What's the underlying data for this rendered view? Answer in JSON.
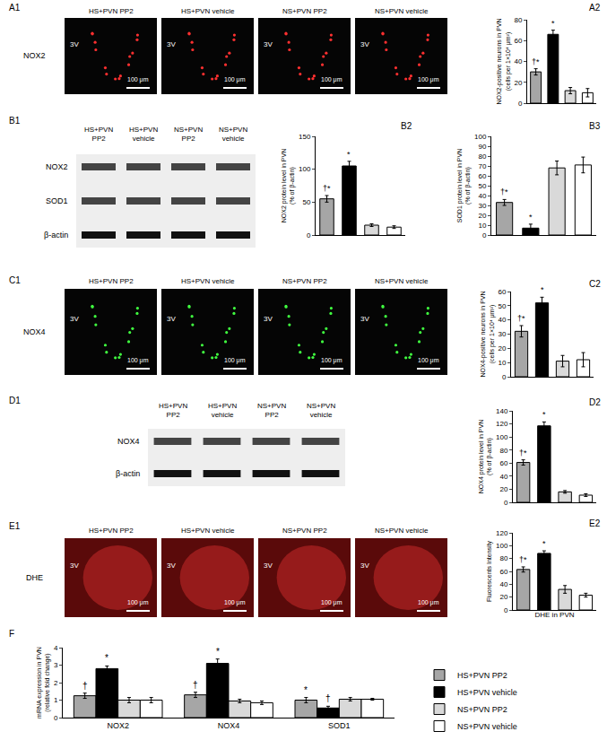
{
  "chart_data": [
    {
      "label": "A2",
      "type": "bar",
      "ylabel": [
        "NOX2-positive neurons in PVN",
        "(cells per 1×10⁴ μm²)"
      ],
      "categories": [
        null,
        null,
        null,
        null
      ],
      "values": [
        30,
        66,
        12,
        10
      ],
      "errors": [
        3,
        4,
        3,
        4
      ],
      "colors": [
        "#a6a6a6",
        "#000000",
        "#d9d9d9",
        "#ffffff"
      ],
      "marks": [
        "†*",
        "*",
        null,
        null
      ],
      "ylim": [
        0,
        80
      ],
      "yticks": [
        0,
        20,
        40,
        60,
        80
      ],
      "grid": false,
      "tick_labels": "y"
    },
    {
      "label": "B2",
      "type": "bar",
      "ylabel": [
        "NOX2 protein level in PVN",
        "(% of β-actin)"
      ],
      "categories": [
        null,
        null,
        null,
        null
      ],
      "values": [
        55,
        105,
        15,
        12
      ],
      "errors": [
        5,
        7,
        2,
        2
      ],
      "colors": [
        "#a6a6a6",
        "#000000",
        "#d9d9d9",
        "#ffffff"
      ],
      "marks": [
        "†*",
        "*",
        null,
        null
      ],
      "ylim": [
        0,
        150
      ],
      "yticks": [
        0,
        50,
        100,
        150
      ],
      "grid": false,
      "tick_labels": "y"
    },
    {
      "label": "B3",
      "type": "bar",
      "ylabel": [
        "SOD1 protein level in PVN",
        "(% of β-actin)"
      ],
      "categories": [
        null,
        null,
        null,
        null
      ],
      "values": [
        33,
        7,
        68,
        71
      ],
      "errors": [
        3,
        4,
        7,
        8
      ],
      "colors": [
        "#a6a6a6",
        "#000000",
        "#d9d9d9",
        "#ffffff"
      ],
      "marks": [
        "†*",
        "*",
        null,
        null
      ],
      "ylim": [
        0,
        100
      ],
      "yticks": [
        0,
        10,
        20,
        30,
        40,
        50,
        60,
        70,
        80,
        90,
        100
      ],
      "grid": false,
      "tick_labels": "y"
    },
    {
      "label": "C2",
      "type": "bar",
      "ylabel": [
        "NOX4-positive neurons in PVN",
        "(cells per 1×10⁴ μm²)"
      ],
      "categories": [
        null,
        null,
        null,
        null
      ],
      "values": [
        32,
        52,
        11,
        12
      ],
      "errors": [
        4,
        4,
        4,
        5
      ],
      "colors": [
        "#a6a6a6",
        "#000000",
        "#d9d9d9",
        "#ffffff"
      ],
      "marks": [
        "†*",
        "*",
        null,
        null
      ],
      "ylim": [
        0,
        60
      ],
      "yticks": [
        0,
        10,
        20,
        30,
        40,
        50,
        60
      ],
      "grid": false,
      "tick_labels": "y"
    },
    {
      "label": "D2",
      "type": "bar",
      "ylabel": [
        "NOX4 protein level in PVN",
        "(% of β-actin)"
      ],
      "categories": [
        null,
        null,
        null,
        null
      ],
      "values": [
        61,
        117,
        16,
        11
      ],
      "errors": [
        4,
        6,
        2,
        2
      ],
      "colors": [
        "#a6a6a6",
        "#000000",
        "#d9d9d9",
        "#ffffff"
      ],
      "marks": [
        "†*",
        "*",
        null,
        null
      ],
      "ylim": [
        0,
        140
      ],
      "yticks": [
        0,
        20,
        40,
        60,
        80,
        100,
        120,
        140
      ],
      "grid": false,
      "tick_labels": "y"
    },
    {
      "label": "E2",
      "type": "bar",
      "ylabel": [
        "Fluorescents Intensity"
      ],
      "xlabel": "DHE in PVN",
      "categories": [
        null,
        null,
        null,
        null
      ],
      "values": [
        63,
        88,
        32,
        23
      ],
      "errors": [
        4,
        4,
        6,
        3
      ],
      "colors": [
        "#a6a6a6",
        "#000000",
        "#d9d9d9",
        "#ffffff"
      ],
      "marks": [
        "†*",
        "*",
        null,
        null
      ],
      "ylim": [
        0,
        120
      ],
      "yticks": [
        0,
        20,
        40,
        60,
        80,
        100,
        120
      ],
      "grid": false,
      "tick_labels": "y"
    },
    {
      "label": "F",
      "type": "bar",
      "ylabel": [
        "mRNA expression in PVN",
        "(relative fold change)"
      ],
      "categories": [
        "NOX2",
        "NOX4",
        "SOD1"
      ],
      "series": [
        {
          "name": "HS+PVN PP2",
          "color": "#a6a6a6",
          "values": [
            1.25,
            1.3,
            1.0
          ],
          "errors": [
            0.15,
            0.15,
            0.15
          ],
          "marks": [
            "†",
            "†",
            "*"
          ]
        },
        {
          "name": "HS+PVN vehicle",
          "color": "#000000",
          "values": [
            2.8,
            3.1,
            0.55
          ],
          "errors": [
            0.15,
            0.25,
            0.1
          ],
          "marks": [
            "*",
            "*",
            "†"
          ]
        },
        {
          "name": "NS+PVN PP2",
          "color": "#d9d9d9",
          "values": [
            1.0,
            0.95,
            1.05
          ],
          "errors": [
            0.15,
            0.1,
            0.1
          ],
          "marks": [
            null,
            null,
            null
          ]
        },
        {
          "name": "NS+PVN vehicle",
          "color": "#ffffff",
          "values": [
            1.0,
            0.85,
            1.05
          ],
          "errors": [
            0.15,
            0.1,
            0.05
          ],
          "marks": [
            null,
            null,
            null
          ]
        }
      ],
      "ylim": [
        0,
        4
      ],
      "yticks": [
        0,
        1,
        2,
        3,
        4
      ],
      "grid": false,
      "legend": "right"
    }
  ],
  "image_panels": [
    {
      "label": "A1",
      "stain": "NOX2",
      "color": "#ff3030",
      "columns": [
        "HS+PVN PP2",
        "HS+PVN vehicle",
        "NS+PVN PP2",
        "NS+PVN vehicle"
      ],
      "region": "3V",
      "scale": "100 μm"
    },
    {
      "label": "C1",
      "stain": "NOX4",
      "color": "#40ff40",
      "columns": [
        "HS+PVN PP2",
        "HS+PVN vehicle",
        "NS+PVN PP2",
        "NS+PVN vehicle"
      ],
      "region": "3V",
      "scale": "100 μm"
    },
    {
      "label": "E1",
      "stain": "DHE",
      "color": "#e03030",
      "columns": [
        "HS+PVN PP2",
        "HS+PVN vehicle",
        "NS+PVN PP2",
        "NS+PVN vehicle"
      ],
      "region": "3V",
      "scale": "100 μm"
    }
  ],
  "blot_panels": [
    {
      "label": "B1",
      "lanes": [
        [
          "HS+PVN",
          "PP2"
        ],
        [
          "HS+PVN",
          "vehicle"
        ],
        [
          "NS+PVN",
          "PP2"
        ],
        [
          "NS+PVN",
          "vehicle"
        ]
      ],
      "rows": [
        "NOX2",
        "SOD1",
        "β-actin"
      ]
    },
    {
      "label": "D1",
      "lanes": [
        [
          "HS+PVN",
          "PP2"
        ],
        [
          "HS+PVN",
          "vehicle"
        ],
        [
          "NS+PVN",
          "PP2"
        ],
        [
          "NS+PVN",
          "vehicle"
        ]
      ],
      "rows": [
        "NOX4",
        "β-actin"
      ]
    }
  ]
}
